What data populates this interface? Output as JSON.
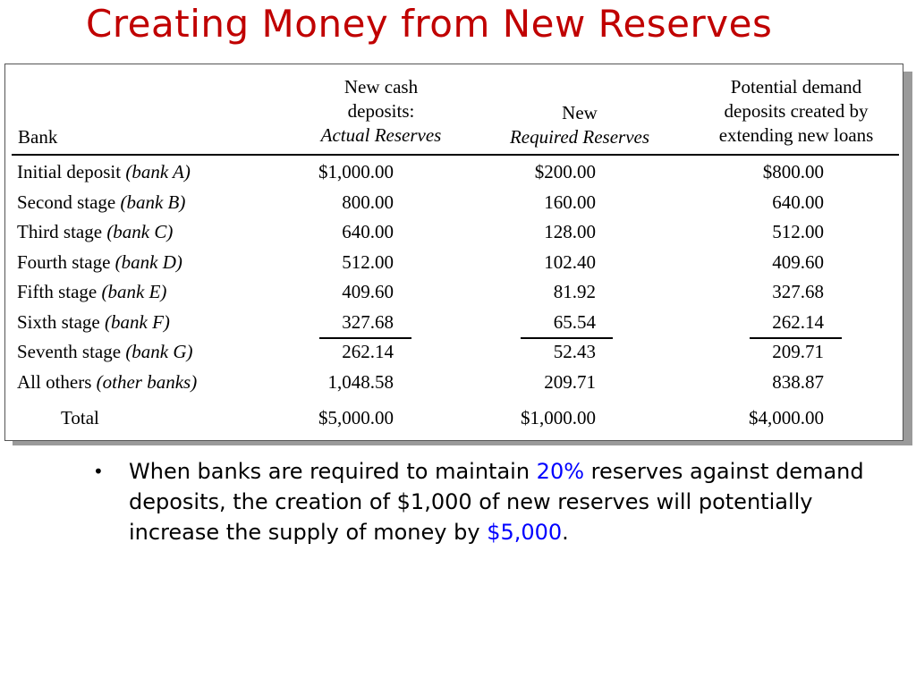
{
  "title": "Creating Money from New Reserves",
  "table": {
    "headers": {
      "bank": "Bank",
      "col1_line1": "New cash",
      "col1_line2": "deposits:",
      "col1_line3": "Actual Reserves",
      "col2_line1": "New",
      "col2_line2": "Required Reserves",
      "col3_line1": "Potential demand",
      "col3_line2": "deposits created by",
      "col3_line3": "extending new loans"
    },
    "rows": [
      {
        "stage": "Initial deposit",
        "bank": "(bank A)",
        "actual": "$1,000.00",
        "required": "$200.00",
        "potential": "$800.00"
      },
      {
        "stage": "Second stage",
        "bank": "(bank B)",
        "actual": "800.00",
        "required": "160.00",
        "potential": "640.00"
      },
      {
        "stage": "Third stage",
        "bank": "(bank C)",
        "actual": "640.00",
        "required": "128.00",
        "potential": "512.00"
      },
      {
        "stage": "Fourth stage",
        "bank": "(bank D)",
        "actual": "512.00",
        "required": "102.40",
        "potential": "409.60"
      },
      {
        "stage": "Fifth stage",
        "bank": "(bank E)",
        "actual": "409.60",
        "required": "81.92",
        "potential": "327.68"
      },
      {
        "stage": "Sixth stage",
        "bank": "(bank F)",
        "actual": "327.68",
        "required": "65.54",
        "potential": "262.14"
      },
      {
        "stage": "Seventh stage",
        "bank": "(bank G)",
        "actual": "262.14",
        "required": "52.43",
        "potential": "209.71"
      },
      {
        "stage": "All others",
        "bank": "(other banks)",
        "actual": "1,048.58",
        "required": "209.71",
        "potential": "838.87"
      }
    ],
    "total": {
      "label": "Total",
      "actual": "$5,000.00",
      "required": "$1,000.00",
      "potential": "$4,000.00"
    }
  },
  "bullet": {
    "part1": "When banks are required to maintain ",
    "highlight1": "20%",
    "part2": " reserves against demand deposits, the creation of $1,000 of new reserves will potentially increase the supply of money by ",
    "highlight2": "$5,000",
    "part3": "."
  },
  "colors": {
    "title": "#c00000",
    "highlight": "#0000ff",
    "shadow": "#9a9a9a"
  }
}
